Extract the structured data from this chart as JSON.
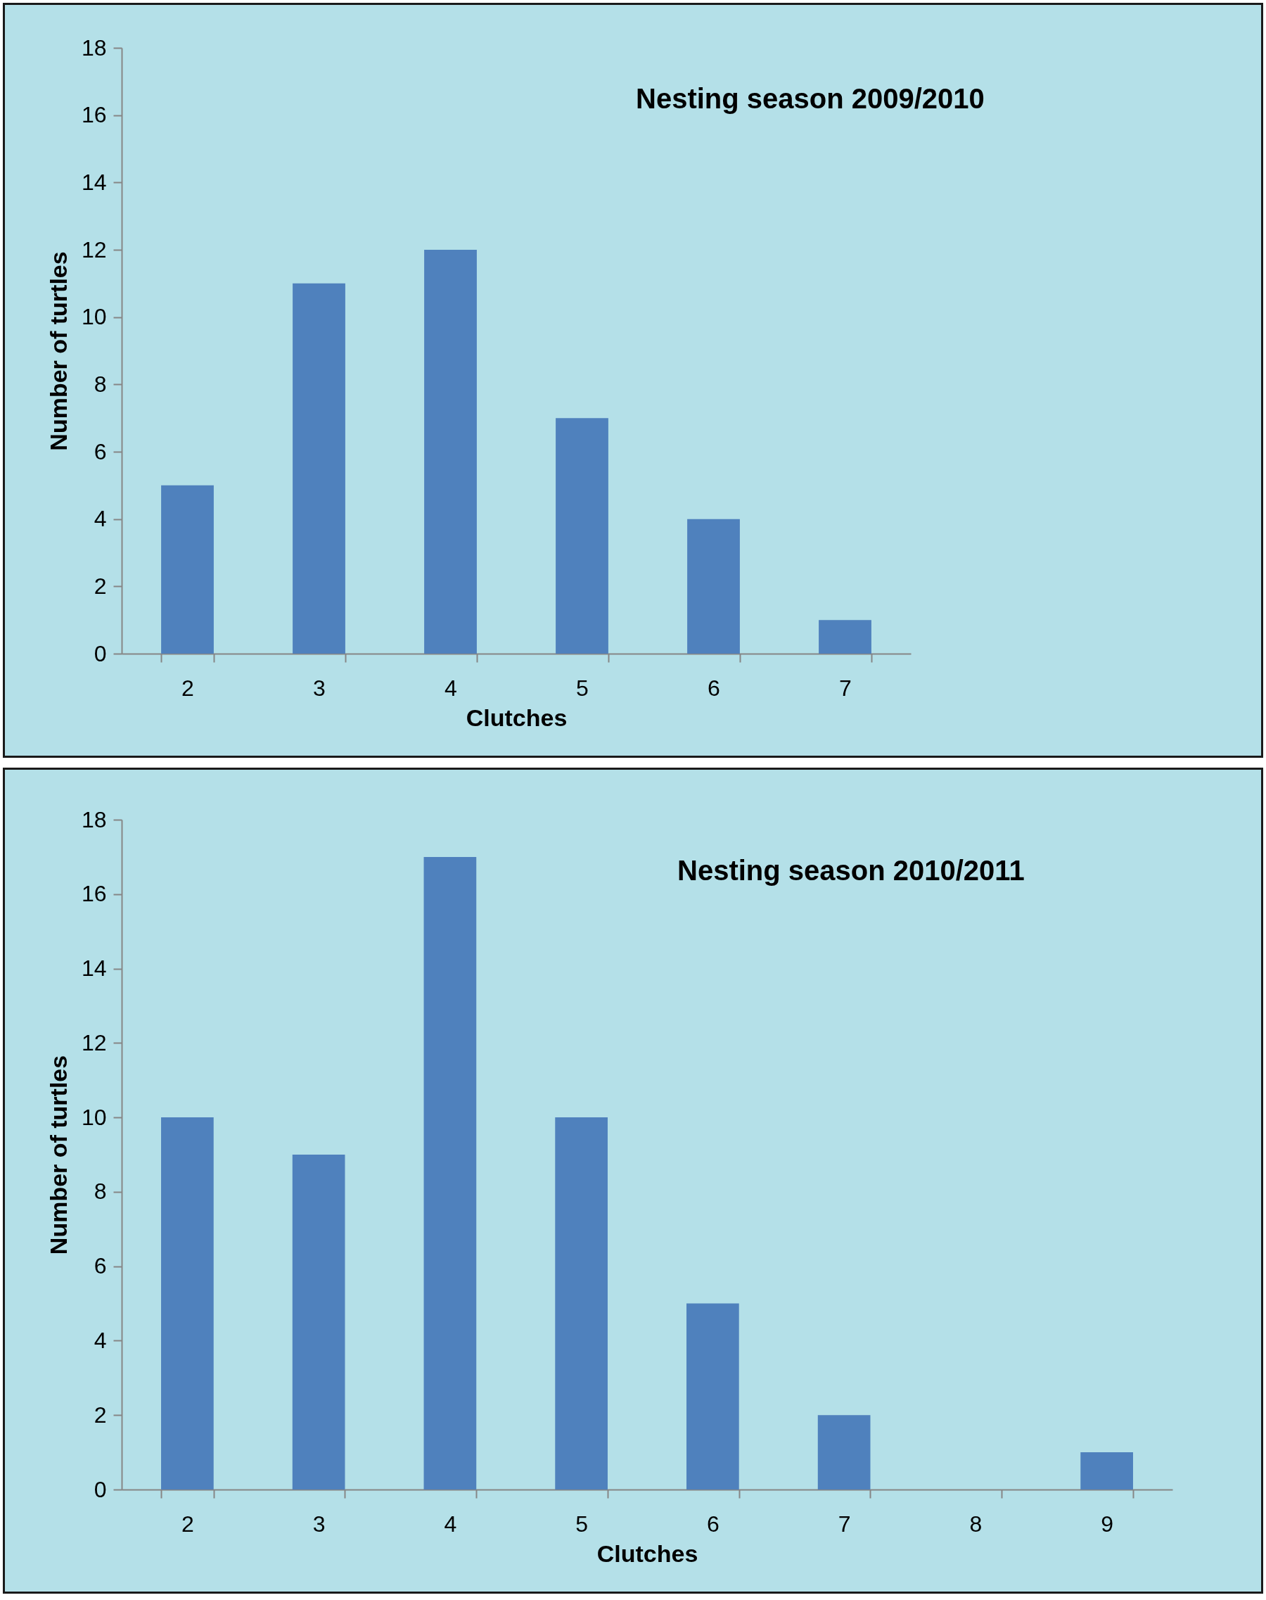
{
  "chart_data": [
    {
      "type": "bar",
      "title": "Nesting season 2009/2010",
      "xlabel": "Clutches",
      "ylabel": "Number of turtles",
      "categories": [
        "2",
        "3",
        "4",
        "5",
        "6",
        "7"
      ],
      "values": [
        5,
        11,
        12,
        7,
        4,
        1
      ],
      "color": "#4f81bd",
      "ylim": [
        0,
        18
      ],
      "yticks": [
        0,
        2,
        4,
        6,
        8,
        10,
        12,
        14,
        16,
        18
      ]
    },
    {
      "type": "bar",
      "title": "Nesting season 2010/2011",
      "xlabel": "Clutches",
      "ylabel": "Number of turtles",
      "categories": [
        "2",
        "3",
        "4",
        "5",
        "6",
        "7",
        "8",
        "9"
      ],
      "values": [
        10,
        9,
        17,
        10,
        5,
        2,
        0,
        1
      ],
      "color": "#4f81bd",
      "ylim": [
        0,
        18
      ],
      "yticks": [
        0,
        2,
        4,
        6,
        8,
        10,
        12,
        14,
        16,
        18
      ]
    }
  ]
}
